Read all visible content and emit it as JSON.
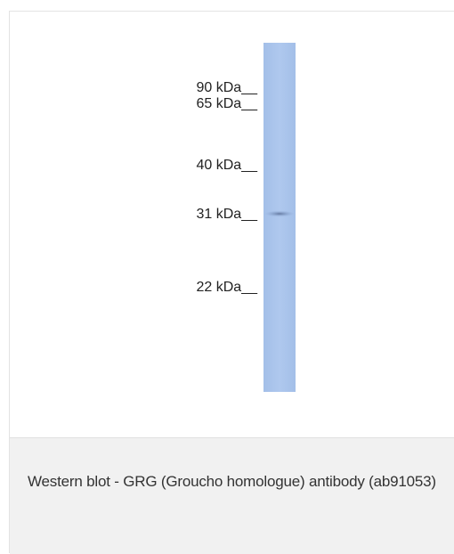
{
  "figure": {
    "markers": [
      "90 kDa__",
      "65 kDa__",
      "40 kDa__",
      "31 kDa__",
      "22 kDa__"
    ]
  },
  "caption": "Western blot - GRG (Groucho homologue) antibody (ab91053)"
}
